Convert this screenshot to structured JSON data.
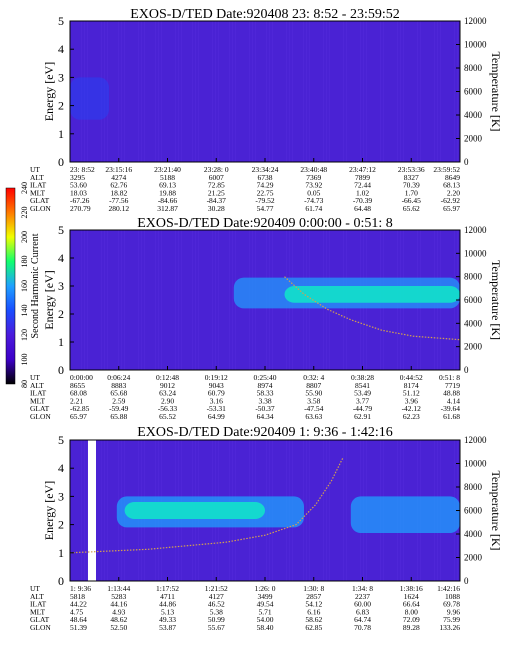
{
  "colorbar": {
    "label": "Second Harmonic Current",
    "ticks": [
      "80",
      "100",
      "120",
      "140",
      "160",
      "180",
      "200",
      "220",
      "240"
    ],
    "stops": [
      "#000000",
      "#3d00c8",
      "#4b1bdc",
      "#1a4dff",
      "#1fa0ff",
      "#10ff6e",
      "#f0ff00",
      "#ff7a00",
      "#ff0000"
    ]
  },
  "chart_data": [
    {
      "type": "heatmap",
      "title": "EXOS-D/TED   Date:920408  23: 8:52 - 23:59:52",
      "ylabel": "Energy [eV]",
      "y2label": "Temperature [K]",
      "ylim": [
        0,
        5
      ],
      "y2lim": [
        0,
        12000
      ],
      "yticks": [
        "0",
        "1",
        "2",
        "3",
        "4",
        "5"
      ],
      "y2ticks": [
        "0",
        "2000",
        "4000",
        "6000",
        "8000",
        "10000",
        "12000"
      ],
      "row_labels": [
        "UT",
        "ALT",
        "ILAT",
        "MLT",
        "GLAT",
        "GLON"
      ],
      "columns": [
        [
          "23: 8:52",
          "3295",
          "53.60",
          "18.03",
          "-67.26",
          "270.79"
        ],
        [
          "23:15:16",
          "4274",
          "62.76",
          "18.82",
          "-77.56",
          "280.12"
        ],
        [
          "23:21:40",
          "5188",
          "69.13",
          "19.88",
          "-84.66",
          "312.87"
        ],
        [
          "23:28: 0",
          "6007",
          "72.85",
          "21.25",
          "-84.37",
          "30.28"
        ],
        [
          "23:34:24",
          "6738",
          "74.29",
          "22.75",
          "-79.52",
          "54.77"
        ],
        [
          "23:40:48",
          "7369",
          "73.92",
          "0.05",
          "-74.73",
          "61.74"
        ],
        [
          "23:47:12",
          "7899",
          "72.44",
          "1.02",
          "-70.39",
          "64.48"
        ],
        [
          "23:53:36",
          "8327",
          "70.39",
          "1.70",
          "-66.45",
          "65.62"
        ],
        [
          "23:59:52",
          "8649",
          "68.13",
          "2.20",
          "-62.92",
          "65.97"
        ]
      ],
      "bands": [
        {
          "x": [
            0.0,
            0.1
          ],
          "y": [
            1.5,
            3.0
          ],
          "color": "#1a4dff",
          "level": 0.4
        }
      ],
      "temperature": []
    },
    {
      "type": "heatmap",
      "title": "EXOS-D/TED   Date:920409  0:00:00 - 0:51: 8",
      "ylabel": "Energy [eV]",
      "y2label": "Temperature [K]",
      "ylim": [
        0,
        5
      ],
      "y2lim": [
        0,
        12000
      ],
      "yticks": [
        "0",
        "1",
        "2",
        "3",
        "4",
        "5"
      ],
      "y2ticks": [
        "0",
        "2000",
        "4000",
        "6000",
        "8000",
        "10000",
        "12000"
      ],
      "row_labels": [
        "UT",
        "ALT",
        "ILAT",
        "MLT",
        "GLAT",
        "GLON"
      ],
      "columns": [
        [
          "0:00:00",
          "8655",
          "68.08",
          "2.21",
          "-62.85",
          "65.97"
        ],
        [
          "0:06:24",
          "8883",
          "65.68",
          "2.59",
          "-59.49",
          "65.88"
        ],
        [
          "0:12:48",
          "9012",
          "63.24",
          "2.90",
          "-56.33",
          "65.52"
        ],
        [
          "0:19:12",
          "9043",
          "60.79",
          "3.16",
          "-53.31",
          "64.99"
        ],
        [
          "0:25:40",
          "8974",
          "58.33",
          "3.38",
          "-50.37",
          "64.34"
        ],
        [
          "0:32: 4",
          "8807",
          "55.90",
          "3.58",
          "-47.54",
          "63.63"
        ],
        [
          "0:38:28",
          "8541",
          "53.49",
          "3.77",
          "-44.79",
          "62.91"
        ],
        [
          "0:44:52",
          "8174",
          "51.12",
          "3.96",
          "-42.12",
          "62.23"
        ],
        [
          "0:51: 8",
          "7719",
          "48.88",
          "4.14",
          "-39.64",
          "61.68"
        ]
      ],
      "bands": [
        {
          "x": [
            0.42,
            1.0
          ],
          "y": [
            2.2,
            3.3
          ],
          "color": "#1fa0ff",
          "level": 0.7
        },
        {
          "x": [
            0.55,
            1.0
          ],
          "y": [
            2.4,
            3.0
          ],
          "color": "#10e8c8",
          "level": 0.85
        }
      ],
      "temperature": [
        [
          0.55,
          8000
        ],
        [
          0.6,
          6500
        ],
        [
          0.66,
          5200
        ],
        [
          0.72,
          4300
        ],
        [
          0.8,
          3400
        ],
        [
          0.88,
          2900
        ],
        [
          1.0,
          2600
        ]
      ]
    },
    {
      "type": "heatmap",
      "title": "EXOS-D/TED   Date:920409  1: 9:36 - 1:42:16",
      "ylabel": "Energy [eV]",
      "y2label": "Temperature [K]",
      "ylim": [
        0,
        5
      ],
      "y2lim": [
        0,
        12000
      ],
      "yticks": [
        "0",
        "1",
        "2",
        "3",
        "4",
        "5"
      ],
      "y2ticks": [
        "0",
        "2000",
        "4000",
        "6000",
        "8000",
        "10000",
        "12000"
      ],
      "row_labels": [
        "UT",
        "ALT",
        "ILAT",
        "MLT",
        "GLAT",
        "GLON"
      ],
      "columns": [
        [
          "1: 9:36",
          "5818",
          "44.22",
          "4.75",
          "48.64",
          "51.39"
        ],
        [
          "1:13:44",
          "5283",
          "44.16",
          "4.93",
          "48.62",
          "52.50"
        ],
        [
          "1:17:52",
          "4711",
          "44.86",
          "5.13",
          "49.33",
          "53.87"
        ],
        [
          "1:21:52",
          "4127",
          "46.52",
          "5.38",
          "50.99",
          "55.67"
        ],
        [
          "1:26: 0",
          "3499",
          "49.54",
          "5.71",
          "54.00",
          "58.40"
        ],
        [
          "1:30: 8",
          "2857",
          "54.12",
          "6.16",
          "58.62",
          "62.85"
        ],
        [
          "1:34: 8",
          "2237",
          "60.00",
          "6.83",
          "64.74",
          "70.78"
        ],
        [
          "1:38:16",
          "1624",
          "66.64",
          "8.00",
          "72.09",
          "89.28"
        ],
        [
          "1:42:16",
          "1088",
          "69.78",
          "9.96",
          "75.99",
          "133.26"
        ]
      ],
      "bands": [
        {
          "x": [
            0.12,
            0.6
          ],
          "y": [
            1.9,
            3.0
          ],
          "color": "#1fa0ff",
          "level": 0.75
        },
        {
          "x": [
            0.14,
            0.5
          ],
          "y": [
            2.2,
            2.8
          ],
          "color": "#10e8c8",
          "level": 0.85
        },
        {
          "x": [
            0.72,
            1.0
          ],
          "y": [
            1.7,
            3.0
          ],
          "color": "#1fa0ff",
          "level": 0.75
        }
      ],
      "temperature": [
        [
          0.0,
          2400
        ],
        [
          0.2,
          2700
        ],
        [
          0.4,
          3300
        ],
        [
          0.5,
          3900
        ],
        [
          0.58,
          4800
        ],
        [
          0.63,
          6500
        ],
        [
          0.67,
          8500
        ],
        [
          0.7,
          10500
        ]
      ]
    }
  ]
}
